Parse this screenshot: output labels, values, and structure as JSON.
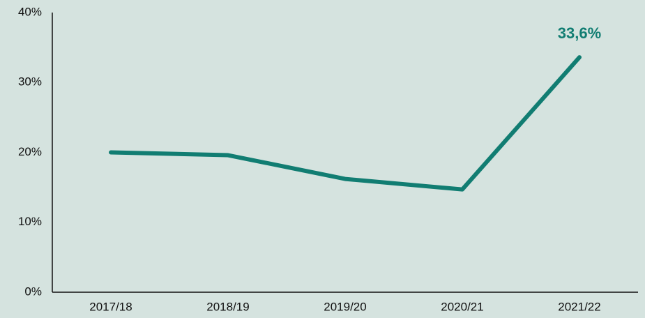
{
  "chart_data": {
    "type": "line",
    "categories": [
      "2017/18",
      "2018/19",
      "2019/20",
      "2020/21",
      "2021/22"
    ],
    "series": [
      {
        "color": "#117d72",
        "values": [
          20.0,
          19.6,
          16.2,
          14.7,
          33.6
        ],
        "value_labels": [
          null,
          null,
          null,
          null,
          "33,6%"
        ]
      }
    ],
    "ylim": [
      0,
      40
    ],
    "yticks": [
      {
        "value": 0,
        "label": "0%"
      },
      {
        "value": 10,
        "label": "10%"
      },
      {
        "value": 20,
        "label": "20%"
      },
      {
        "value": 30,
        "label": "30%"
      },
      {
        "value": 40,
        "label": "40%"
      }
    ],
    "grid": false
  }
}
